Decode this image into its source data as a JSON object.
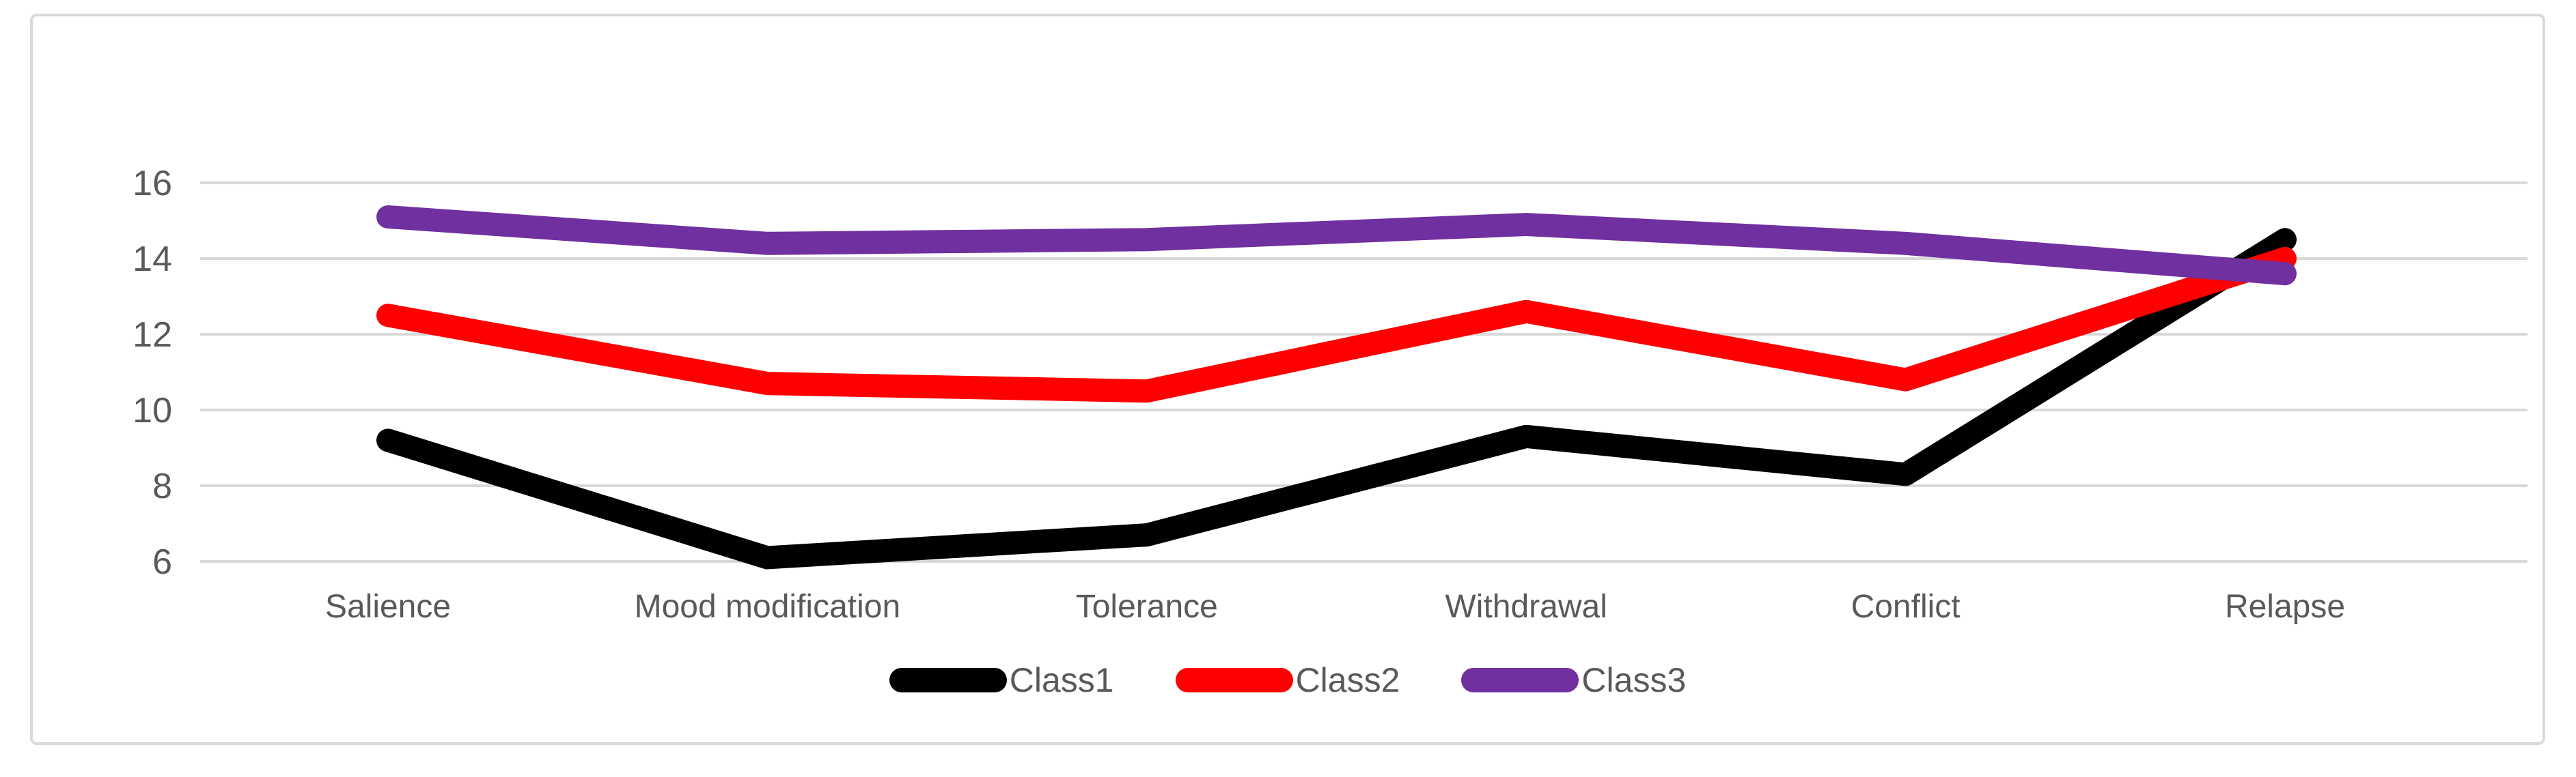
{
  "chart_data": {
    "type": "line",
    "title": "",
    "xlabel": "",
    "ylabel": "",
    "categories": [
      "Salience",
      "Mood modification",
      "Tolerance",
      "Withdrawal",
      "Conflict",
      "Relapse"
    ],
    "series": [
      {
        "name": "Class1",
        "color": "#000000",
        "values": [
          9.2,
          6.1,
          6.7,
          9.3,
          8.3,
          14.5
        ]
      },
      {
        "name": "Class2",
        "color": "#ff0000",
        "values": [
          12.5,
          10.7,
          10.5,
          12.6,
          10.8,
          14.0
        ]
      },
      {
        "name": "Class3",
        "color": "#7030a0",
        "values": [
          15.1,
          14.4,
          14.5,
          14.9,
          14.4,
          13.6
        ]
      }
    ],
    "y_axis": {
      "ticks": [
        6,
        8,
        10,
        12,
        14,
        16
      ],
      "min": 6,
      "max": 16
    },
    "grid": "horizontal",
    "legend_position": "bottom",
    "colors": {
      "gridline": "#d9d9d9",
      "frame_border": "#d9d9d9",
      "axis_text": "#595959",
      "background": "#ffffff"
    },
    "line_width": 34
  }
}
